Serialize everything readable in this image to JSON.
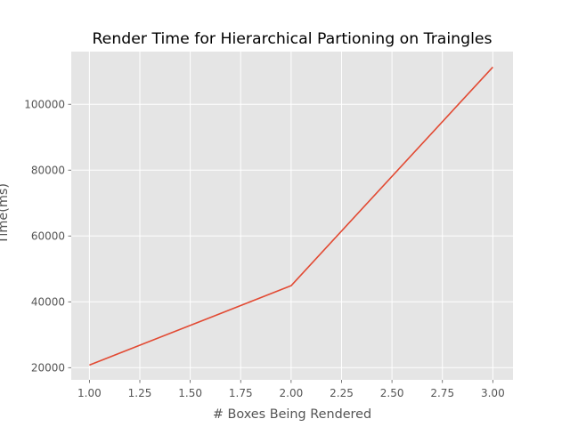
{
  "chart_data": {
    "type": "line",
    "title": "Render Time for Hierarchical Partioning on Traingles",
    "xlabel": "# Boxes Being Rendered",
    "ylabel": "Time(ms)",
    "x": [
      1.0,
      2.0,
      3.0
    ],
    "series": [
      {
        "values": [
          20800,
          44900,
          111300
        ],
        "color": "#E24A33"
      }
    ],
    "xlim": [
      0.91,
      3.1
    ],
    "ylim": [
      16300,
      116000
    ],
    "xticks": [
      1.0,
      1.25,
      1.5,
      1.75,
      2.0,
      2.25,
      2.5,
      2.75,
      3.0
    ],
    "xtick_labels": [
      "1.00",
      "1.25",
      "1.50",
      "1.75",
      "2.00",
      "2.25",
      "2.50",
      "2.75",
      "3.00"
    ],
    "yticks": [
      20000,
      40000,
      60000,
      80000,
      100000
    ],
    "ytick_labels": [
      "20000",
      "40000",
      "60000",
      "80000",
      "100000"
    ],
    "grid": true,
    "style": {
      "plot_background": "#E5E5E5",
      "grid_color": "#FFFFFF",
      "text_color": "#555555",
      "title_color": "#000000"
    }
  }
}
